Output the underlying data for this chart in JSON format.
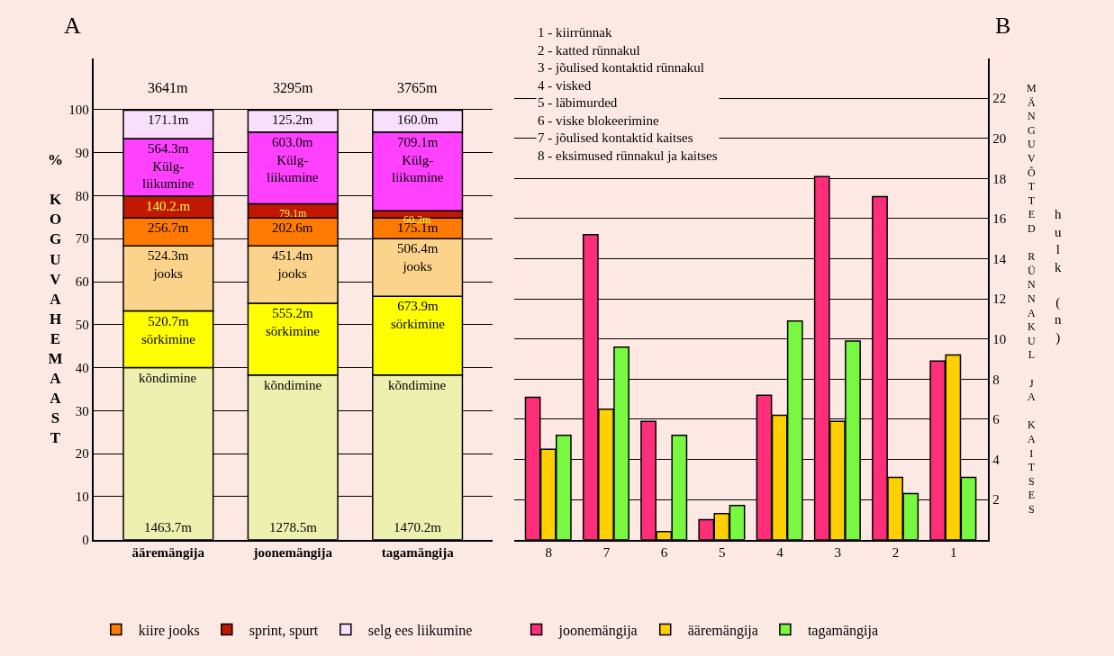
{
  "chart_data": [
    {
      "type": "bar",
      "title": "A",
      "ylabel": "% KOGUVAHEMAAST",
      "stacked": true,
      "categories": [
        "ääremängija",
        "joonemängija",
        "tagamängija"
      ],
      "ylim": [
        0,
        112
      ],
      "yticks": [
        0,
        10,
        20,
        30,
        40,
        50,
        60,
        70,
        80,
        90,
        100
      ],
      "grid": "y",
      "legend": "bottom",
      "series": [
        {
          "color": "#eef0b0",
          "values": [
            40.0,
            38.3,
            38.3
          ]
        },
        {
          "color": "#ffff00",
          "values": [
            13.2,
            16.7,
            18.3
          ]
        },
        {
          "color": "#fcd38a",
          "values": [
            15.1,
            13.3,
            13.4
          ]
        },
        {
          "name": "kiire jooks",
          "color": "#ff7a00",
          "values": [
            6.5,
            6.5,
            4.8
          ]
        },
        {
          "name": "sprint, spurt",
          "color": "#c01800",
          "values": [
            5.1,
            3.3,
            1.7
          ]
        },
        {
          "color": "#ff40ff",
          "values": [
            13.4,
            16.7,
            18.3
          ]
        },
        {
          "name": "selg ees liikumine",
          "color": "#f8e0fc",
          "values": [
            6.6,
            5.1,
            5.1
          ]
        }
      ],
      "annotations": [
        {
          "text": "3641m",
          "x": "ääremängija",
          "y": 99.9
        },
        {
          "text": "3295m",
          "x": "joonemängija",
          "y": 99.9
        },
        {
          "text": "3765m",
          "x": "tagamängija",
          "y": 99.9
        },
        {
          "text": "kõndimine",
          "x": "ääremängija",
          "y": 40.0
        },
        {
          "text": "kõndimine",
          "x": "joonemängija",
          "y": 38.3
        },
        {
          "text": "kõndimine",
          "x": "tagamängija",
          "y": 38.3
        },
        {
          "text": "1463.7m",
          "x": "ääremängija",
          "y": 0
        },
        {
          "text": "1278.5m",
          "x": "joonemängija",
          "y": 0
        },
        {
          "text": "1470.2m",
          "x": "tagamängija",
          "y": 0
        },
        {
          "text": "520.7m\nsörkimine",
          "x": "ääremängija",
          "y": 53.2
        },
        {
          "text": "555.2m\nsörkimine",
          "x": "joonemängija",
          "y": 55.0
        },
        {
          "text": "673.9m\nsörkimine",
          "x": "tagamängija",
          "y": 56.6
        },
        {
          "text": "524.3m\njooks",
          "x": "ääremängija",
          "y": 68.3
        },
        {
          "text": "451.4m\njooks",
          "x": "joonemängija",
          "y": 68.3
        },
        {
          "text": "506.4m\njooks",
          "x": "tagamängija",
          "y": 70.0
        },
        {
          "text": "256.7m",
          "x": "ääremängija",
          "y": 74.8
        },
        {
          "text": "202.6m",
          "x": "joonemängija",
          "y": 74.8
        },
        {
          "text": "175.1m",
          "x": "tagamängija",
          "y": 74.8
        },
        {
          "text": "140.2.m",
          "x": "ääremängija",
          "y": 79.9
        },
        {
          "text": "79.1m",
          "x": "joonemängija",
          "y": 78.1
        },
        {
          "text": "60.2m",
          "x": "tagamängija",
          "y": 76.5
        },
        {
          "text": "564.3m\nKülg-\nliikumine",
          "x": "ääremängija",
          "y": 93.3
        },
        {
          "text": "603.0m\nKülg-\nliikumine",
          "x": "joonemängija",
          "y": 94.8
        },
        {
          "text": "709.1m\nKülg-\nliikumine",
          "x": "tagamängija",
          "y": 94.8
        },
        {
          "text": "171.1m",
          "x": "ääremängija",
          "y": 99.9
        },
        {
          "text": "125.2m",
          "x": "joonemängija",
          "y": 99.9
        },
        {
          "text": "160.0m",
          "x": "tagamängija",
          "y": 99.9
        }
      ]
    },
    {
      "type": "bar",
      "title": "B",
      "ylabel": "MÄNGUVÕTTED RÜNNAKUL JA KAITSES",
      "y2label": "hulk (n)",
      "categories": [
        "8",
        "7",
        "6",
        "5",
        "4",
        "3",
        "2",
        "1"
      ],
      "ylim": [
        0,
        24
      ],
      "yticks": [
        2,
        4,
        6,
        8,
        10,
        12,
        14,
        16,
        18,
        20,
        22
      ],
      "grid": "y",
      "legend": "bottom",
      "series": [
        {
          "name": "joonemängija",
          "color": "#ff2e78",
          "values": [
            7.1,
            15.2,
            5.9,
            1.0,
            7.2,
            18.1,
            17.1,
            8.9
          ]
        },
        {
          "name": "ääremängija",
          "color": "#ffd000",
          "values": [
            4.5,
            6.5,
            0.4,
            1.3,
            6.2,
            5.9,
            3.1,
            9.2
          ]
        },
        {
          "name": "tagamängija",
          "color": "#78f840",
          "values": [
            5.2,
            9.6,
            5.2,
            1.7,
            10.9,
            9.9,
            2.3,
            3.1
          ]
        }
      ],
      "annotations": [
        "1 - kiirrünnak",
        "2 - katted rünnakul",
        "3 - jõulised kontaktid rünnakul",
        "4 - visked",
        "5 - läbimurded",
        "6 - viske blokeerimine",
        "7 - jõulised kontaktid kaitses",
        "8 - eksimused rünnakul ja kaitses"
      ]
    }
  ]
}
